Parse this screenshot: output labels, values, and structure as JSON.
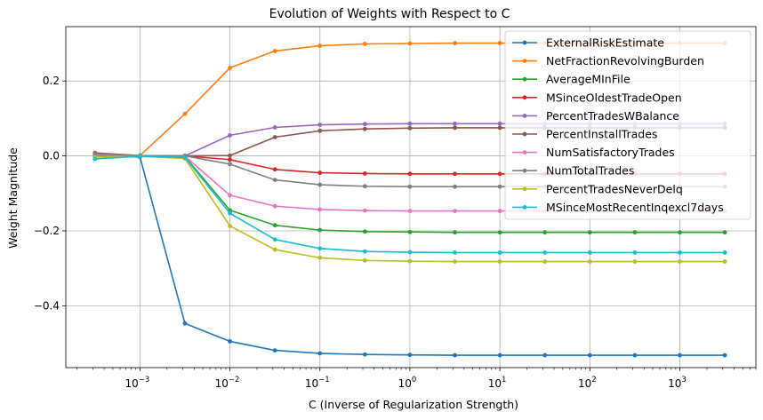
{
  "chart_data": {
    "type": "line",
    "title": "Evolution of Weights with Respect to C",
    "xlabel": "C (Inverse of Regularization Strength)",
    "ylabel": "Weight Magnitude",
    "xscale": "log",
    "xlim": [
      0.00015,
      7000
    ],
    "ylim": [
      -0.565,
      0.345
    ],
    "x_ticks": [
      {
        "value": 0.001,
        "base": "10",
        "exp": "−3"
      },
      {
        "value": 0.01,
        "base": "10",
        "exp": "−2"
      },
      {
        "value": 0.1,
        "base": "10",
        "exp": "−1"
      },
      {
        "value": 1,
        "base": "10",
        "exp": "0"
      },
      {
        "value": 10,
        "base": "10",
        "exp": "1"
      },
      {
        "value": 100,
        "base": "10",
        "exp": "2"
      },
      {
        "value": 1000,
        "base": "10",
        "exp": "3"
      }
    ],
    "y_ticks": [
      {
        "value": 0.2,
        "label": "0.2"
      },
      {
        "value": 0.0,
        "label": "0.0"
      },
      {
        "value": -0.2,
        "label": "−0.2"
      },
      {
        "value": -0.4,
        "label": "−0.4"
      }
    ],
    "grid": true,
    "legend_position": "top-right",
    "x": [
      0.0003162,
      0.001,
      0.003162,
      0.01,
      0.03162,
      0.1,
      0.3162,
      1,
      3.162,
      10,
      31.62,
      100,
      316.2,
      1000,
      3162
    ],
    "series": [
      {
        "name": "ExternalRiskEstimate",
        "color": "#1f77b4",
        "values": [
          0.0,
          -0.003,
          -0.447,
          -0.495,
          -0.519,
          -0.527,
          -0.53,
          -0.531,
          -0.532,
          -0.532,
          -0.532,
          -0.532,
          -0.532,
          -0.532,
          -0.532
        ]
      },
      {
        "name": "NetFractionRevolvingBurden",
        "color": "#ff7f0e",
        "values": [
          0.0,
          0.001,
          0.112,
          0.235,
          0.28,
          0.294,
          0.299,
          0.3,
          0.301,
          0.301,
          0.301,
          0.301,
          0.301,
          0.301,
          0.301
        ]
      },
      {
        "name": "AverageMInFile",
        "color": "#2ca02c",
        "values": [
          0.0,
          0.0,
          -0.002,
          -0.145,
          -0.185,
          -0.198,
          -0.202,
          -0.203,
          -0.204,
          -0.204,
          -0.204,
          -0.204,
          -0.204,
          -0.204,
          -0.204
        ]
      },
      {
        "name": "MSinceOldestTradeOpen",
        "color": "#d62728",
        "values": [
          0.0,
          0.0,
          0.0,
          -0.01,
          -0.036,
          -0.045,
          -0.047,
          -0.048,
          -0.048,
          -0.048,
          -0.048,
          -0.048,
          -0.048,
          -0.048,
          -0.048
        ]
      },
      {
        "name": "PercentTradesWBalance",
        "color": "#9467bd",
        "values": [
          0.0,
          0.0,
          0.0,
          0.055,
          0.076,
          0.083,
          0.085,
          0.086,
          0.086,
          0.086,
          0.086,
          0.086,
          0.086,
          0.086,
          0.086
        ]
      },
      {
        "name": "PercentInstallTrades",
        "color": "#8c564b",
        "values": [
          0.008,
          0.001,
          0.0,
          0.001,
          0.05,
          0.067,
          0.072,
          0.074,
          0.075,
          0.075,
          0.075,
          0.075,
          0.075,
          0.075,
          0.075
        ]
      },
      {
        "name": "NumSatisfactoryTrades",
        "color": "#e377c2",
        "values": [
          0.003,
          0.0,
          -0.001,
          -0.105,
          -0.134,
          -0.143,
          -0.146,
          -0.147,
          -0.147,
          -0.147,
          -0.147,
          -0.147,
          -0.147,
          -0.147,
          -0.147
        ]
      },
      {
        "name": "NumTotalTrades",
        "color": "#7f7f7f",
        "values": [
          0.006,
          0.001,
          0.0,
          -0.022,
          -0.064,
          -0.077,
          -0.081,
          -0.082,
          -0.082,
          -0.082,
          -0.082,
          -0.082,
          -0.082,
          -0.082,
          -0.082
        ]
      },
      {
        "name": "PercentTradesNeverDelq",
        "color": "#bcbd22",
        "values": [
          -0.003,
          -0.001,
          -0.007,
          -0.187,
          -0.25,
          -0.272,
          -0.279,
          -0.281,
          -0.282,
          -0.282,
          -0.282,
          -0.282,
          -0.282,
          -0.282,
          -0.282
        ]
      },
      {
        "name": "MSinceMostRecentInqexcl7days",
        "color": "#17becf",
        "values": [
          -0.008,
          -0.001,
          -0.004,
          -0.153,
          -0.223,
          -0.247,
          -0.255,
          -0.257,
          -0.258,
          -0.258,
          -0.258,
          -0.258,
          -0.258,
          -0.258,
          -0.258
        ]
      }
    ]
  }
}
